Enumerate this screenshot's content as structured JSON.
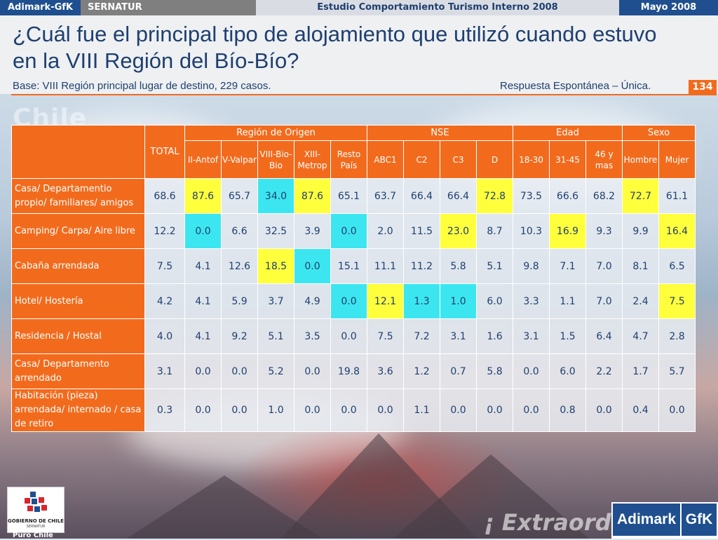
{
  "topbar": {
    "brand": "Adimark-GfK",
    "client": "SERNATUR",
    "study": "Estudio Comportamiento Turismo Interno 2008",
    "date": "Mayo 2008"
  },
  "slide": {
    "title": "¿Cuál fue el principal tipo de alojamiento que utilizó cuando estuvo en la VIII Región del Bío-Bío?",
    "base": "Base: VIII Región principal lugar de destino, 229 casos.",
    "response_type": "Respuesta Espontánea – Única.",
    "page_number": "134"
  },
  "background": {
    "watermark_top": "Chile",
    "watermark_bottom": "¡ Extraord"
  },
  "table": {
    "total_label": "TOTAL",
    "groups": [
      "Región de Origen",
      "NSE",
      "Edad",
      "Sexo"
    ],
    "columns": [
      "II-Antof",
      "V-Valpar",
      "VIII-Bio-Bio",
      "XIII-Metrop",
      "Resto País",
      "ABC1",
      "C2",
      "C3",
      "D",
      "18-30",
      "31-45",
      "46 y mas",
      "Hombre",
      "Mujer"
    ],
    "rows": [
      {
        "label": "Casa/ Departamentio propio/ familiares/ amigos",
        "values": [
          "68.6",
          "87.6",
          "65.7",
          "34.0",
          "87.6",
          "65.1",
          "63.7",
          "66.4",
          "66.4",
          "72.8",
          "73.5",
          "66.6",
          "68.2",
          "72.7",
          "61.1"
        ],
        "hl": [
          "",
          "y",
          "",
          "b",
          "y",
          "",
          "",
          "",
          "",
          "y",
          "",
          "",
          "",
          "y",
          ""
        ]
      },
      {
        "label": "Camping/ Carpa/ Aire libre",
        "values": [
          "12.2",
          "0.0",
          "6.6",
          "32.5",
          "3.9",
          "0.0",
          "2.0",
          "11.5",
          "23.0",
          "8.7",
          "10.3",
          "16.9",
          "9.3",
          "9.9",
          "16.4"
        ],
        "hl": [
          "",
          "b",
          "",
          "",
          "",
          "b",
          "",
          "",
          "y",
          "",
          "",
          "y",
          "",
          "",
          "y"
        ]
      },
      {
        "label": "Cabaña arrendada",
        "values": [
          "7.5",
          "4.1",
          "12.6",
          "18.5",
          "0.0",
          "15.1",
          "11.1",
          "11.2",
          "5.8",
          "5.1",
          "9.8",
          "7.1",
          "7.0",
          "8.1",
          "6.5"
        ],
        "hl": [
          "",
          "",
          "",
          "y",
          "b",
          "",
          "",
          "",
          "",
          "",
          "",
          "",
          "",
          "",
          ""
        ]
      },
      {
        "label": "Hotel/ Hostería",
        "values": [
          "4.2",
          "4.1",
          "5.9",
          "3.7",
          "4.9",
          "0.0",
          "12.1",
          "1.3",
          "1.0",
          "6.0",
          "3.3",
          "1.1",
          "7.0",
          "2.4",
          "7.5"
        ],
        "hl": [
          "",
          "",
          "",
          "",
          "",
          "b",
          "y",
          "b",
          "b",
          "",
          "",
          "",
          "",
          "",
          "y"
        ]
      },
      {
        "label": "Residencia / Hostal",
        "values": [
          "4.0",
          "4.1",
          "9.2",
          "5.1",
          "3.5",
          "0.0",
          "7.5",
          "7.2",
          "3.1",
          "1.6",
          "3.1",
          "1.5",
          "6.4",
          "4.7",
          "2.8"
        ],
        "hl": [
          "",
          "",
          "",
          "",
          "",
          "",
          "",
          "",
          "",
          "",
          "",
          "",
          "",
          "",
          ""
        ]
      },
      {
        "label": "Casa/ Departamento arrendado",
        "values": [
          "3.1",
          "0.0",
          "0.0",
          "5.2",
          "0.0",
          "19.8",
          "3.6",
          "1.2",
          "0.7",
          "5.8",
          "0.0",
          "6.0",
          "2.2",
          "1.7",
          "5.7"
        ],
        "hl": [
          "",
          "",
          "",
          "",
          "",
          "",
          "",
          "",
          "",
          "",
          "",
          "",
          "",
          "",
          ""
        ]
      },
      {
        "label": "Habitación (pieza) arrendada/ internado / casa de retiro",
        "values": [
          "0.3",
          "0.0",
          "0.0",
          "1.0",
          "0.0",
          "0.0",
          "0.0",
          "1.1",
          "0.0",
          "0.0",
          "0.0",
          "0.8",
          "0.0",
          "0.4",
          "0.0"
        ],
        "hl": [
          "",
          "",
          "",
          "",
          "",
          "",
          "",
          "",
          "",
          "",
          "",
          "",
          "",
          "",
          ""
        ]
      }
    ]
  },
  "logos": {
    "gobierno_line1": "GOBIERNO DE CHILE",
    "gobierno_line2": "SERNATUR",
    "puro_chile": "Puro Chile",
    "adimark": "Adimark",
    "gfk": "GfK"
  },
  "colors": {
    "orange": "#f26b1d",
    "navy": "#1f4f8f",
    "highlight_high": "#ffff3c",
    "highlight_low": "#3ce6f0"
  }
}
